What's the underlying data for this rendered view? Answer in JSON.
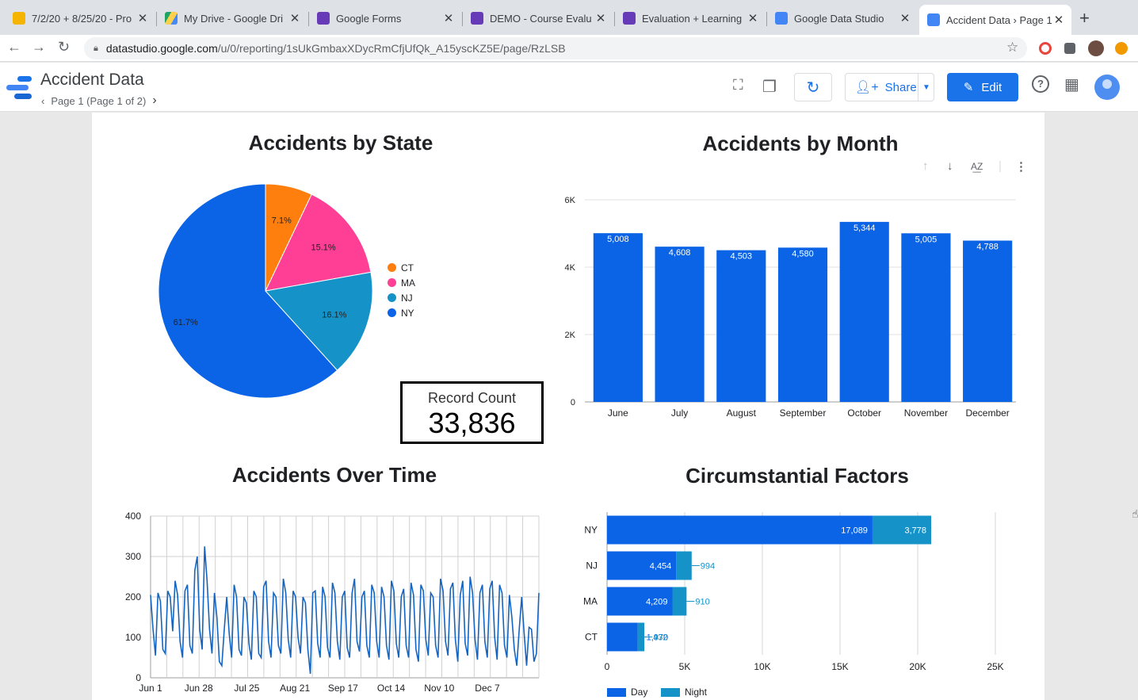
{
  "browser": {
    "tabs": [
      {
        "title": "7/2/20 + 8/25/20 - Pro",
        "color": "#f4b400"
      },
      {
        "title": "My Drive - Google Dri",
        "color": "#1fa463"
      },
      {
        "title": "Google Forms",
        "color": "#673ab7"
      },
      {
        "title": "DEMO - Course Evalu",
        "color": "#673ab7"
      },
      {
        "title": "Evaluation + Learning",
        "color": "#673ab7"
      },
      {
        "title": "Google Data Studio",
        "color": "#4285f4"
      },
      {
        "title": "Accident Data › Page 1",
        "color": "#4285f4"
      }
    ],
    "url_host": "datastudio.google.com",
    "url_path": "/u/0/reporting/1sUkGmbaxXDycRmCfjUfQk_A15yscKZ5E/page/RzLSB"
  },
  "app": {
    "title": "Accident Data",
    "page_indicator": "Page 1 (Page 1 of 2)",
    "share_label": "Share",
    "edit_label": "Edit",
    "brand_color": "#1a73e8"
  },
  "scorecard": {
    "label": "Record Count",
    "value": "33,836"
  },
  "chart_data": [
    {
      "type": "pie",
      "title": "Accidents by State",
      "slices": [
        {
          "label": "CT",
          "value": 7.1,
          "display": "7.1%",
          "color": "#ff7f0e"
        },
        {
          "label": "MA",
          "value": 15.1,
          "display": "15.1%",
          "color": "#ff3e96"
        },
        {
          "label": "NJ",
          "value": 16.1,
          "display": "16.1%",
          "color": "#1592c7"
        },
        {
          "label": "NY",
          "value": 61.7,
          "display": "61.7%",
          "color": "#0b63e5"
        }
      ],
      "legend": "right"
    },
    {
      "type": "bar",
      "title": "Accidents by Month",
      "categories": [
        "June",
        "July",
        "August",
        "September",
        "October",
        "November",
        "December"
      ],
      "values": [
        5008,
        4608,
        4503,
        4580,
        5344,
        5005,
        4788
      ],
      "labels": [
        "5,008",
        "4,608",
        "4,503",
        "4,580",
        "5,344",
        "5,005",
        "4,788"
      ],
      "yticks": [
        "0",
        "2K",
        "4K",
        "6K"
      ],
      "ylim": [
        0,
        6000
      ],
      "color": "#0b63e5"
    },
    {
      "type": "line",
      "title": "Accidents Over Time",
      "xticks": [
        "Jun 1",
        "Jun 28",
        "Jul 25",
        "Aug 21",
        "Sep 17",
        "Oct 14",
        "Nov 10",
        "Dec 7"
      ],
      "yticks": [
        "0",
        "100",
        "200",
        "300",
        "400"
      ],
      "ylim": [
        0,
        400
      ],
      "color": "#1565c0",
      "values": [
        205,
        120,
        55,
        210,
        190,
        70,
        60,
        215,
        200,
        115,
        240,
        205,
        90,
        50,
        215,
        230,
        80,
        60,
        265,
        300,
        120,
        70,
        325,
        240,
        120,
        60,
        210,
        150,
        40,
        30,
        120,
        200,
        110,
        50,
        230,
        200,
        70,
        55,
        200,
        185,
        85,
        45,
        215,
        200,
        60,
        50,
        225,
        240,
        90,
        50,
        210,
        200,
        80,
        60,
        245,
        210,
        95,
        50,
        215,
        200,
        100,
        60,
        200,
        185,
        70,
        10,
        210,
        215,
        85,
        50,
        225,
        200,
        75,
        50,
        235,
        210,
        90,
        45,
        200,
        215,
        75,
        50,
        210,
        245,
        90,
        65,
        200,
        215,
        80,
        50,
        230,
        210,
        90,
        50,
        225,
        200,
        80,
        45,
        240,
        215,
        85,
        50,
        200,
        220,
        80,
        50,
        235,
        205,
        70,
        40,
        230,
        215,
        95,
        55,
        210,
        200,
        80,
        50,
        245,
        215,
        90,
        55,
        220,
        235,
        95,
        40,
        205,
        240,
        85,
        55,
        250,
        210,
        95,
        45,
        210,
        230,
        90,
        50,
        220,
        240,
        100,
        45,
        230,
        210,
        80,
        50,
        205,
        150,
        70,
        30,
        120,
        200,
        110,
        30,
        125,
        120,
        40,
        60,
        210
      ]
    },
    {
      "type": "bar",
      "orientation": "horizontal",
      "stacked": true,
      "title": "Circumstantial Factors",
      "categories": [
        "NY",
        "NJ",
        "MA",
        "CT"
      ],
      "series": [
        {
          "name": "Day",
          "values": [
            17089,
            4454,
            4209,
            1970
          ],
          "labels": [
            "17,089",
            "4,454",
            "4,209",
            "1,970"
          ],
          "color": "#0b63e5"
        },
        {
          "name": "Night",
          "values": [
            3778,
            994,
            910,
            432
          ],
          "labels": [
            "3,778",
            "994",
            "910",
            "432"
          ],
          "color": "#1592c7"
        }
      ],
      "xticks": [
        "0",
        "5K",
        "10K",
        "15K",
        "20K",
        "25K"
      ],
      "xlim": [
        0,
        25000
      ],
      "legend": "bottom-left"
    }
  ]
}
